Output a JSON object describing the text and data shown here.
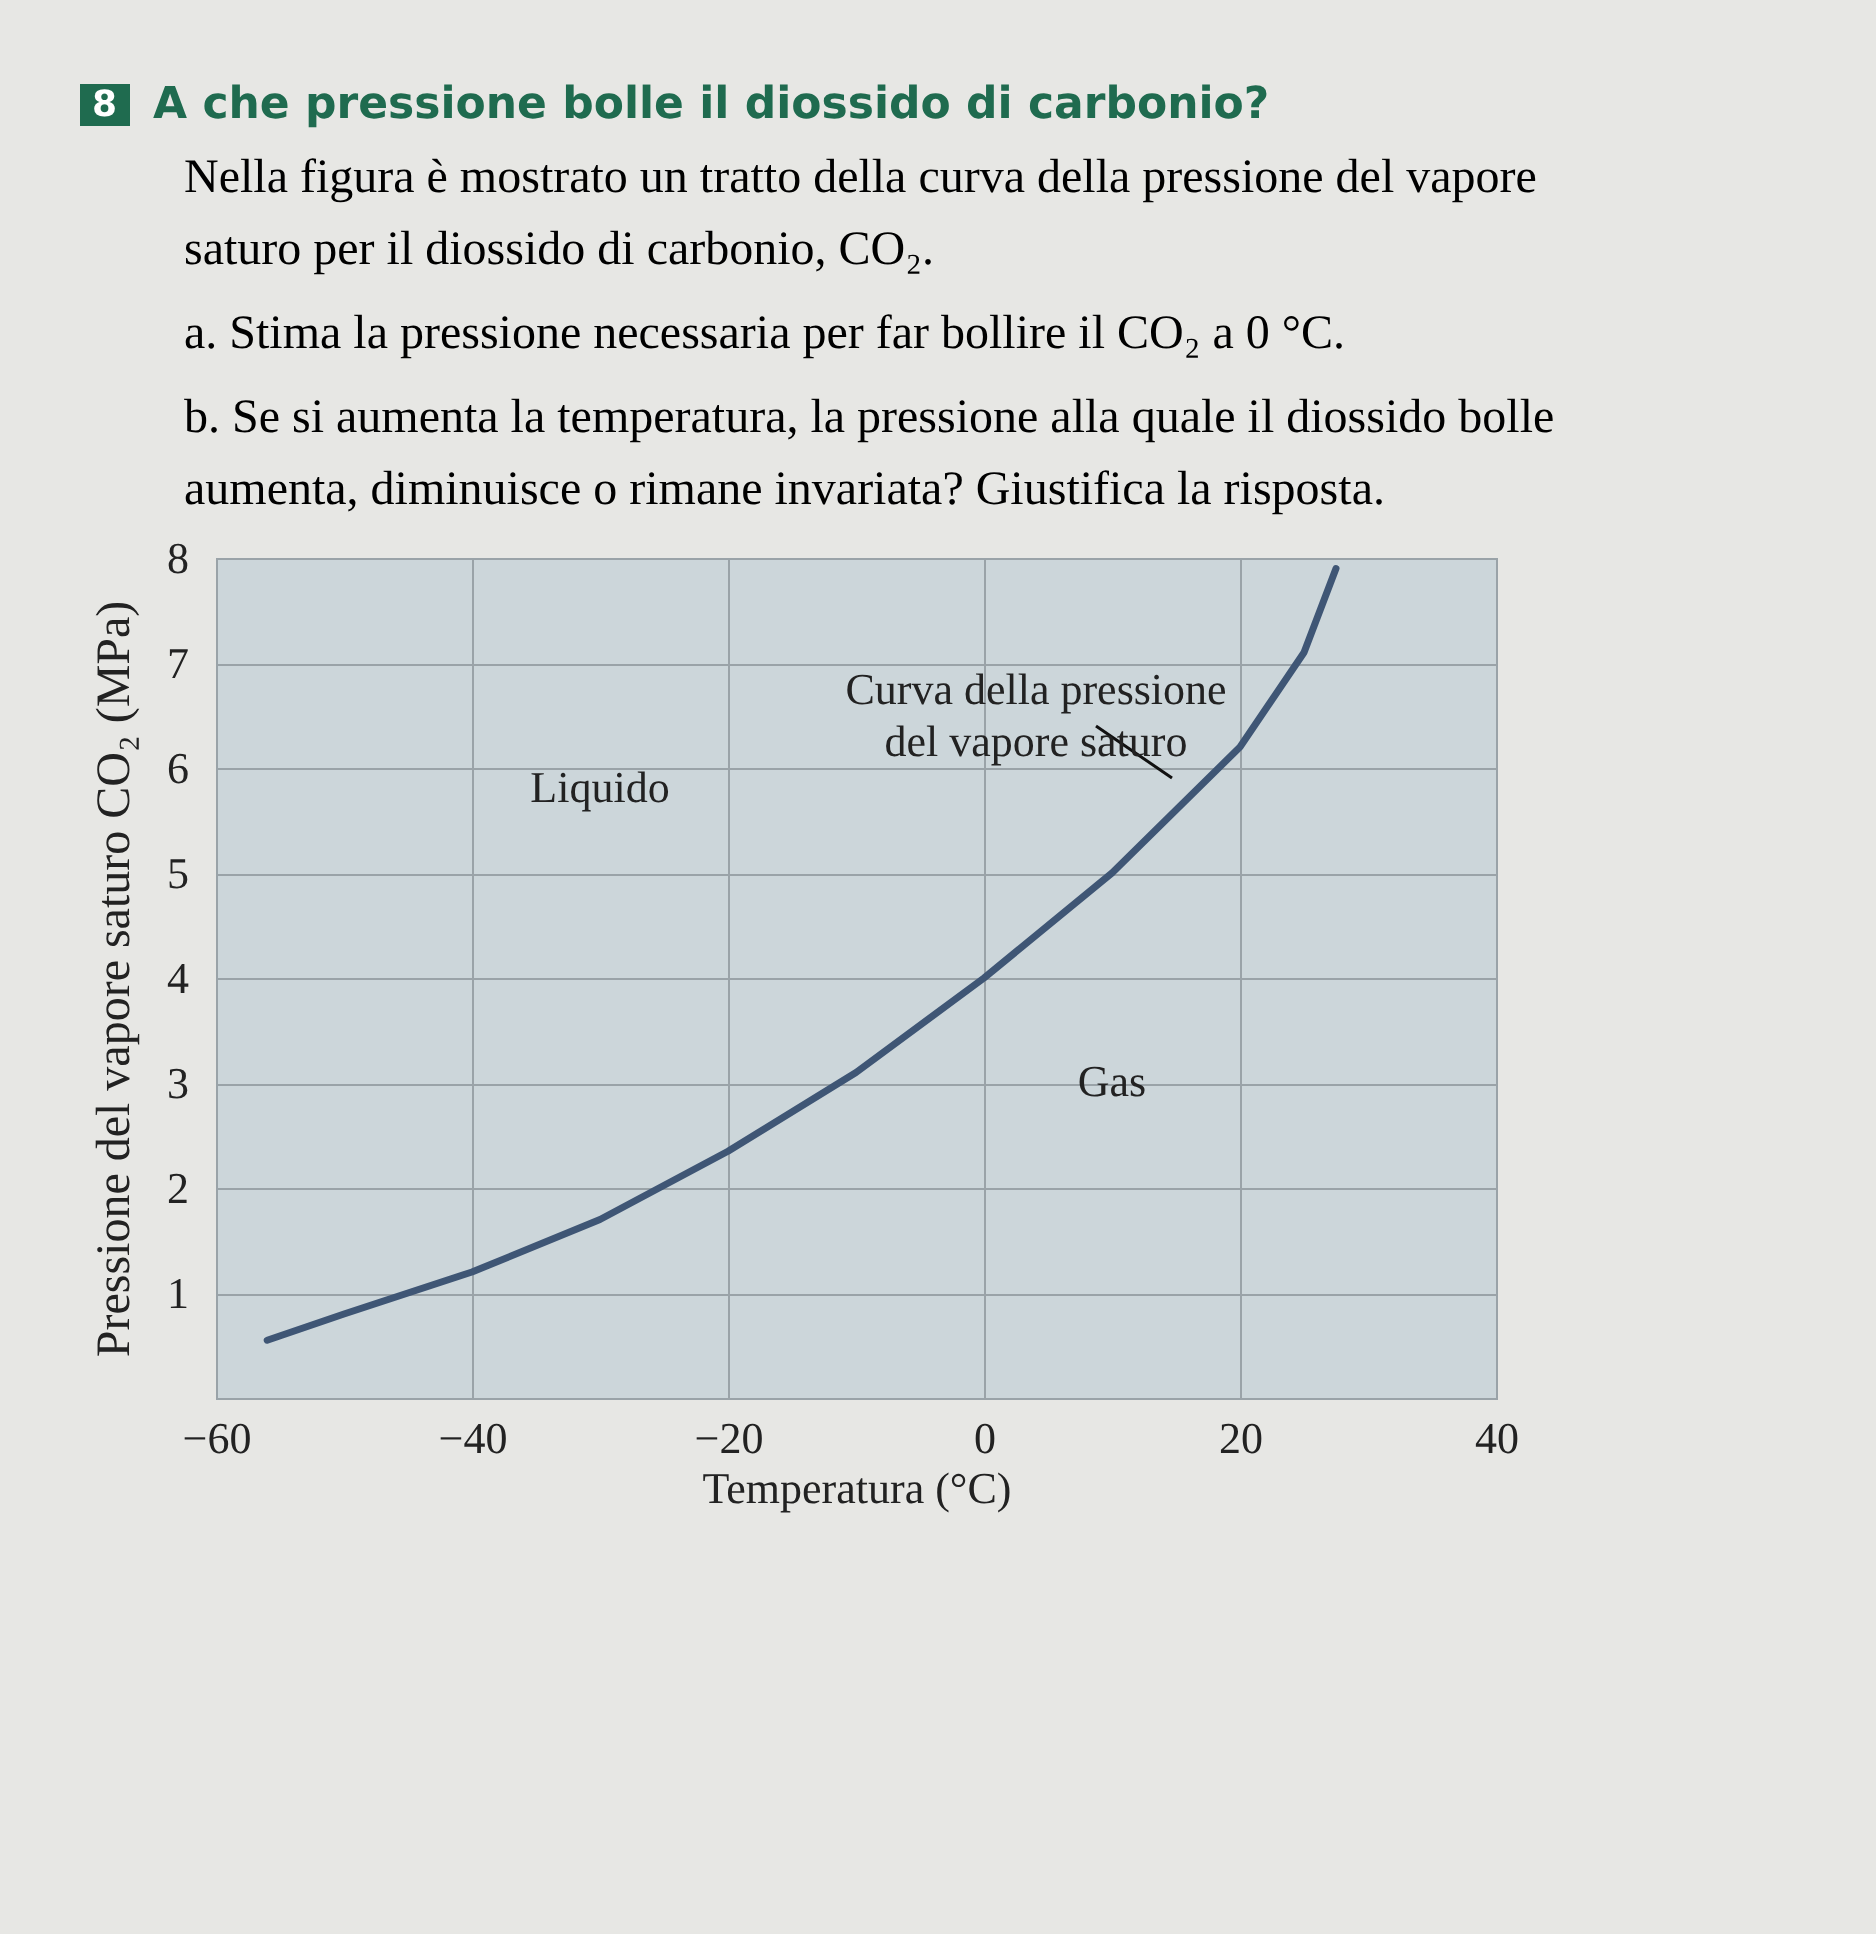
{
  "chart_data": {
    "type": "line",
    "title": "A che pressione bolle il diossido di carbonio?",
    "subtitle": "Nella figura è mostrato un tratto della curva della pressione del vapore saturo per il diossido di carbonio, CO₂.",
    "xlabel": "Temperatura (°C)",
    "ylabel": "Pressione del vapore saturo CO₂ (MPa)",
    "x": [
      -56,
      -50,
      -40,
      -30,
      -20,
      -10,
      0,
      10,
      15,
      20,
      25,
      27.5
    ],
    "series": [
      {
        "color": "#3f5675",
        "values": [
          0.55,
          0.8,
          1.2,
          1.7,
          2.35,
          3.1,
          4.0,
          5.0,
          5.6,
          6.2,
          7.1,
          7.9
        ]
      }
    ],
    "xlim": [
      -60,
      40
    ],
    "xticks": [
      -60,
      -40,
      -20,
      0,
      20,
      40
    ],
    "ylim": [
      0,
      8
    ],
    "yticks": [
      1,
      2,
      3,
      4,
      5,
      6,
      7,
      8
    ],
    "grid": true,
    "marker": "none",
    "line_style": "solid",
    "annotations": [
      "8",
      "a. Stima la pressione necessaria per far bollire il CO₂ a 0 °C.",
      "b. Se si aumenta la temperatura, la pressione alla quale il diossido bolle aumenta, diminuisce o rimane invariata? Giustifica la risposta.",
      "Liquido",
      "Gas",
      "Curva della pressione\ndel vapore saturo"
    ]
  }
}
